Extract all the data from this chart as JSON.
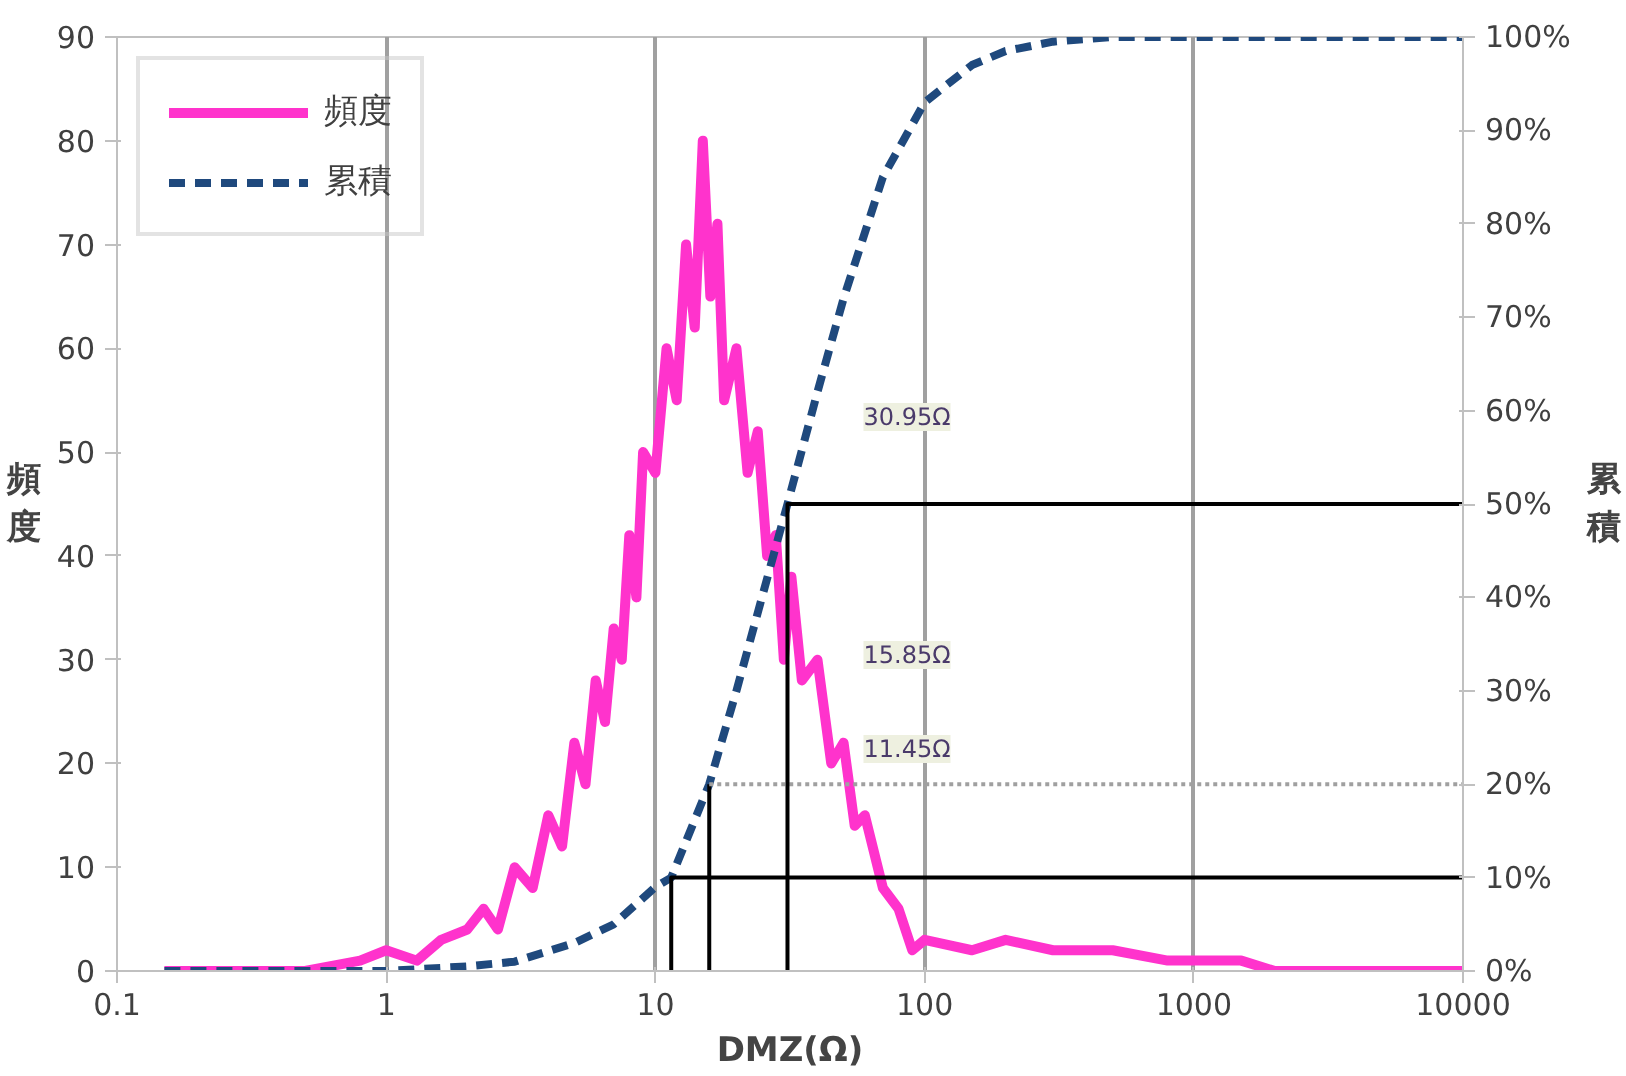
{
  "chart_data": {
    "type": "line",
    "xlabel": "DMZ(Ω)",
    "ylabel": "頻度",
    "y2label": "累積",
    "log": "x",
    "grid": "x",
    "legend": "top left",
    "xlim": [
      0.1,
      10000
    ],
    "xticks": [
      0.1,
      1,
      10,
      100,
      1000,
      10000
    ],
    "ylim": [
      0,
      90
    ],
    "yticks": [
      0,
      10,
      20,
      30,
      40,
      50,
      60,
      70,
      80,
      90
    ],
    "y2lim": [
      0,
      100
    ],
    "y2ticks": [
      {
        "value": 0,
        "label": "0%"
      },
      {
        "value": 10,
        "label": "10%"
      },
      {
        "value": 20,
        "label": "20%"
      },
      {
        "value": 30,
        "label": "30%"
      },
      {
        "value": 40,
        "label": "40%"
      },
      {
        "value": 50,
        "label": "50%"
      },
      {
        "value": 60,
        "label": "60%"
      },
      {
        "value": 70,
        "label": "70%"
      },
      {
        "value": 80,
        "label": "80%"
      },
      {
        "value": 90,
        "label": "90%"
      },
      {
        "value": 100,
        "label": "100%"
      }
    ],
    "series": [
      {
        "name": "頻度",
        "color": "#ff33cc",
        "line_style": "solid",
        "x": [
          0.15,
          0.5,
          0.8,
          1,
          1.3,
          1.6,
          2,
          2.3,
          2.6,
          3,
          3.5,
          4,
          4.5,
          5,
          5.5,
          6,
          6.5,
          7,
          7.5,
          8,
          8.5,
          9,
          10,
          11,
          12,
          13,
          14,
          15,
          16,
          17,
          18,
          20,
          22,
          24,
          26,
          28,
          30,
          32,
          35,
          40,
          45,
          50,
          55,
          60,
          70,
          80,
          90,
          100,
          150,
          200,
          300,
          500,
          800,
          1500,
          2000,
          10000
        ],
        "values": [
          0,
          0,
          1,
          2,
          1,
          3,
          4,
          6,
          4,
          10,
          8,
          15,
          12,
          22,
          18,
          28,
          24,
          33,
          30,
          42,
          36,
          50,
          48,
          60,
          55,
          70,
          62,
          80,
          65,
          72,
          55,
          60,
          48,
          52,
          40,
          42,
          30,
          38,
          28,
          30,
          20,
          22,
          14,
          15,
          8,
          6,
          2,
          3,
          2,
          3,
          2,
          2,
          1,
          1,
          0,
          0
        ]
      },
      {
        "name": "累積",
        "color": "#1f497d",
        "axis": "y2",
        "line_style": "dashed",
        "x": [
          0.15,
          1,
          2,
          3,
          5,
          7,
          10,
          11.45,
          15.85,
          20,
          30.95,
          40,
          50,
          70,
          100,
          150,
          200,
          300,
          500,
          10000
        ],
        "values": [
          0,
          0,
          0.5,
          1,
          3,
          5,
          9,
          10,
          20,
          30,
          50,
          62,
          72,
          85,
          93,
          97,
          98.5,
          99.5,
          100,
          100
        ]
      },
      {
        "color": "#000000",
        "axis": "y2",
        "line_style": "solid",
        "x": [
          11.45,
          11.45,
          10000
        ],
        "values": [
          0,
          10,
          10
        ]
      },
      {
        "color": "#000000",
        "axis": "y2",
        "line_style": "solid",
        "x": [
          15.85,
          15.85
        ],
        "values": [
          0,
          20
        ]
      },
      {
        "color": "#a0a0a0",
        "axis": "y2",
        "line_style": "dotted",
        "x": [
          15.85,
          10000
        ],
        "values": [
          20,
          20
        ]
      },
      {
        "color": "#000000",
        "axis": "y2",
        "line_style": "solid",
        "x": [
          30.95,
          30.95,
          10000
        ],
        "values": [
          0,
          50,
          50
        ]
      }
    ],
    "annotations": [
      "30.95Ω",
      "15.85Ω",
      "11.45Ω"
    ]
  }
}
